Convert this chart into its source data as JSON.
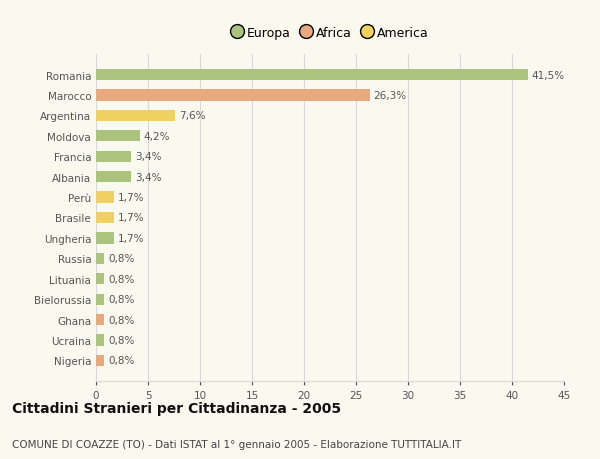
{
  "categories": [
    "Romania",
    "Marocco",
    "Argentina",
    "Moldova",
    "Francia",
    "Albania",
    "Perù",
    "Brasile",
    "Ungheria",
    "Russia",
    "Lituania",
    "Bielorussia",
    "Ghana",
    "Ucraina",
    "Nigeria"
  ],
  "values": [
    41.5,
    26.3,
    7.6,
    4.2,
    3.4,
    3.4,
    1.7,
    1.7,
    1.7,
    0.8,
    0.8,
    0.8,
    0.8,
    0.8,
    0.8
  ],
  "labels": [
    "41,5%",
    "26,3%",
    "7,6%",
    "4,2%",
    "3,4%",
    "3,4%",
    "1,7%",
    "1,7%",
    "1,7%",
    "0,8%",
    "0,8%",
    "0,8%",
    "0,8%",
    "0,8%",
    "0,8%"
  ],
  "colors": [
    "#aac47e",
    "#e8a97e",
    "#f0d060",
    "#aac47e",
    "#aac47e",
    "#aac47e",
    "#f0d060",
    "#f0d060",
    "#aac47e",
    "#aac47e",
    "#aac47e",
    "#aac47e",
    "#e8a97e",
    "#aac47e",
    "#e8a97e"
  ],
  "legend_labels": [
    "Europa",
    "Africa",
    "America"
  ],
  "legend_colors": [
    "#aac47e",
    "#e8a97e",
    "#f0d060"
  ],
  "title": "Cittadini Stranieri per Cittadinanza - 2005",
  "subtitle": "COMUNE DI COAZZE (TO) - Dati ISTAT al 1° gennaio 2005 - Elaborazione TUTTITALIA.IT",
  "xlim": [
    0,
    45
  ],
  "xticks": [
    0,
    5,
    10,
    15,
    20,
    25,
    30,
    35,
    40,
    45
  ],
  "background_color": "#f9f9f0",
  "grid_color": "#d8d8d8",
  "bar_height": 0.55,
  "title_fontsize": 10,
  "subtitle_fontsize": 7.5,
  "label_fontsize": 7.5,
  "tick_fontsize": 7.5,
  "legend_fontsize": 9
}
